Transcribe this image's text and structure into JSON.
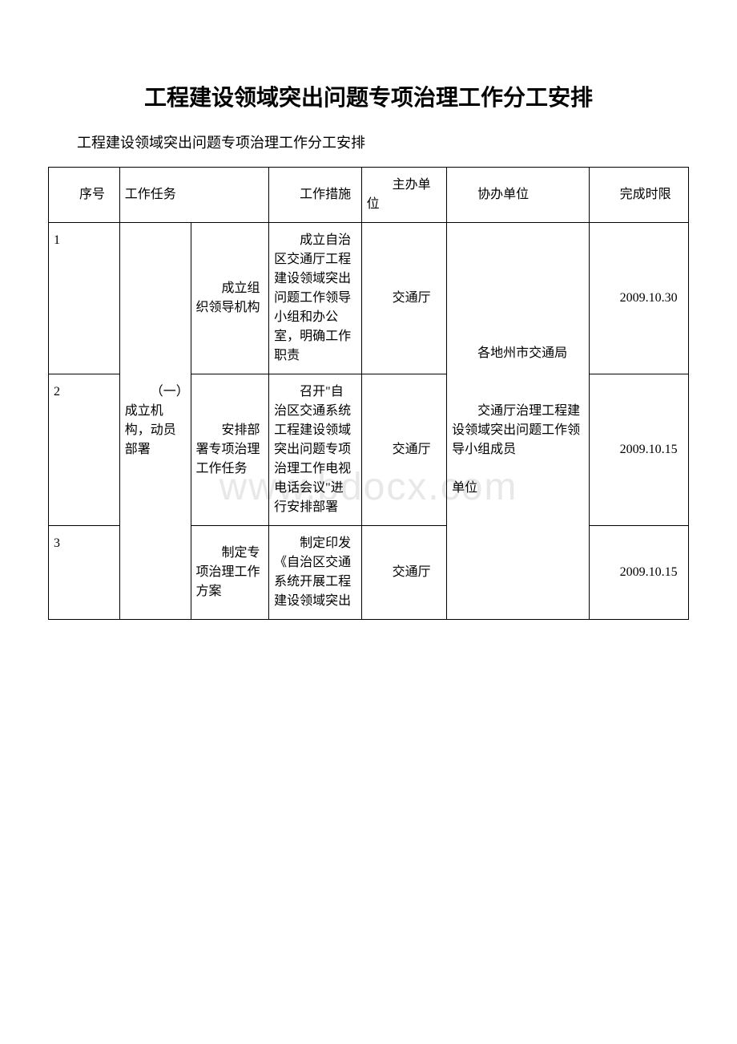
{
  "title": "工程建设领域突出问题专项治理工作分工安排",
  "subtitle": "工程建设领域突出问题专项治理工作分工安排",
  "watermark": "www.bdocx.com",
  "columns": {
    "seq": "序号",
    "task": "工作任务",
    "measure": "工作措施",
    "main_unit": "主办单位",
    "assist_unit": "协办单位",
    "deadline": "完成时限"
  },
  "task_group": "（一）成立机构，动员部署",
  "assist_group_top": "各地州市交通局",
  "assist_group_bottom": "交通厅治理工程建设领域突出问题工作领导小组成员\n\n单位",
  "rows": [
    {
      "seq": "1",
      "subtask": "成立组织领导机构",
      "measure": "成立自治区交通厅工程建设领域突出问题工作领导小组和办公室，明确工作职责",
      "main_unit": "交通厅",
      "deadline": "2009.10.30"
    },
    {
      "seq": "2",
      "subtask": "安排部署专项治理工作任务",
      "measure": "召开\"自治区交通系统工程建设领域突出问题专项治理工作电视电话会议\"进行安排部署",
      "main_unit": "交通厅",
      "deadline": "2009.10.15"
    },
    {
      "seq": "3",
      "subtask": "制定专项治理工作方案",
      "measure": "制定印发《自治区交通系统开展工程建设领域突出",
      "main_unit": "交通厅",
      "deadline": "2009.10.15"
    }
  ],
  "styling": {
    "background_color": "#ffffff",
    "text_color": "#000000",
    "border_color": "#000000",
    "watermark_color": "#e8e8e8",
    "title_fontsize": 28,
    "subtitle_fontsize": 18,
    "cell_fontsize": 16,
    "watermark_fontsize": 48,
    "font_family": "SimSun"
  }
}
